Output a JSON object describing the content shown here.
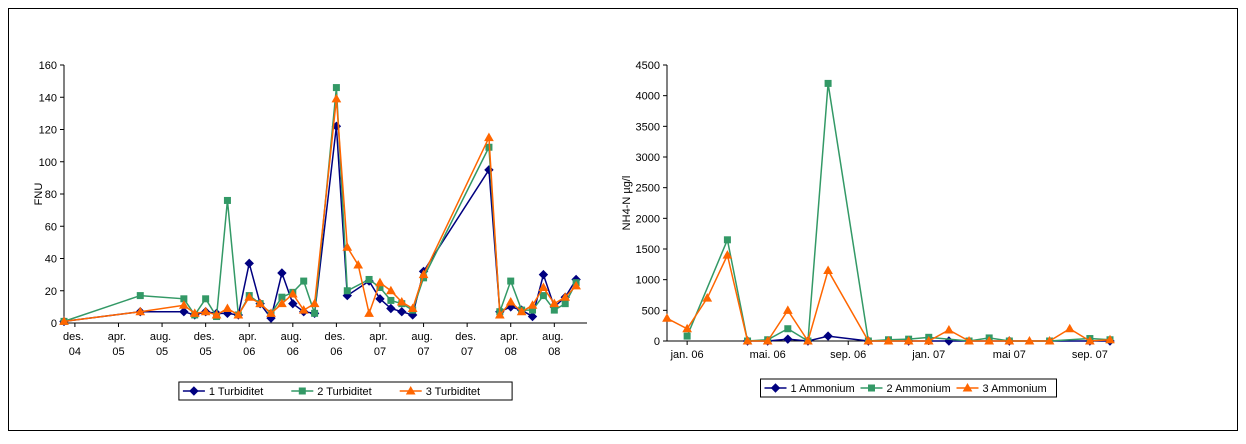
{
  "chart_data": [
    {
      "type": "line",
      "y_label": "FNU",
      "xlim": [
        "2004-11",
        "2008-11"
      ],
      "xticks": [
        {
          "value": "2004-12",
          "label": "des. 04"
        },
        {
          "value": "2005-04",
          "label": "apr. 05"
        },
        {
          "value": "2005-08",
          "label": "aug. 05"
        },
        {
          "value": "2005-12",
          "label": "des. 05"
        },
        {
          "value": "2006-04",
          "label": "apr. 06"
        },
        {
          "value": "2006-08",
          "label": "aug. 06"
        },
        {
          "value": "2006-12",
          "label": "des. 06"
        },
        {
          "value": "2007-04",
          "label": "apr. 07"
        },
        {
          "value": "2007-08",
          "label": "aug. 07"
        },
        {
          "value": "2007-12",
          "label": "des. 07"
        },
        {
          "value": "2008-04",
          "label": "apr. 08"
        },
        {
          "value": "2008-08",
          "label": "aug. 08"
        }
      ],
      "ylim": [
        0,
        160
      ],
      "yticks": [
        0,
        20,
        40,
        60,
        80,
        100,
        120,
        140,
        160
      ],
      "series": [
        {
          "name": "1 Turbiditet",
          "color": "#000080",
          "marker": "diamond",
          "x": [
            "2004-11",
            "2005-06",
            "2005-10",
            "2005-11",
            "2005-12",
            "2006-01",
            "2006-02",
            "2006-03",
            "2006-04",
            "2006-05",
            "2006-06",
            "2006-07",
            "2006-08",
            "2006-09",
            "2006-10",
            "2006-12",
            "2007-01",
            "2007-03",
            "2007-04",
            "2007-05",
            "2007-06",
            "2007-07",
            "2007-08",
            "2008-02",
            "2008-03",
            "2008-04",
            "2008-05",
            "2008-06",
            "2008-07",
            "2008-08",
            "2008-09",
            "2008-10"
          ],
          "values": [
            1,
            7,
            7,
            5,
            7,
            6,
            6,
            5,
            37,
            12,
            3,
            31,
            12,
            7,
            6,
            122,
            17,
            26,
            15,
            9,
            7,
            5,
            32,
            95,
            7,
            10,
            8,
            4,
            30,
            10,
            16,
            27
          ]
        },
        {
          "name": "2 Turbiditet",
          "color": "#339966",
          "marker": "square",
          "x": [
            "2004-11",
            "2005-06",
            "2005-10",
            "2005-11",
            "2005-12",
            "2006-01",
            "2006-02",
            "2006-03",
            "2006-04",
            "2006-05",
            "2006-06",
            "2006-07",
            "2006-08",
            "2006-09",
            "2006-10",
            "2006-12",
            "2007-01",
            "2007-03",
            "2007-04",
            "2007-05",
            "2007-06",
            "2007-07",
            "2007-08",
            "2008-02",
            "2008-03",
            "2008-04",
            "2008-05",
            "2008-06",
            "2008-07",
            "2008-08",
            "2008-09",
            "2008-10"
          ],
          "values": [
            1,
            17,
            15,
            5,
            15,
            4,
            76,
            5,
            17,
            12,
            6,
            16,
            19,
            26,
            6,
            146,
            20,
            27,
            22,
            14,
            12,
            8,
            28,
            109,
            7,
            26,
            8,
            8,
            17,
            8,
            12,
            25
          ]
        },
        {
          "name": "3 Turbiditet",
          "color": "#FF6600",
          "marker": "triangle",
          "x": [
            "2004-11",
            "2005-06",
            "2005-10",
            "2005-11",
            "2005-12",
            "2006-01",
            "2006-02",
            "2006-03",
            "2006-04",
            "2006-05",
            "2006-06",
            "2006-07",
            "2006-08",
            "2006-09",
            "2006-10",
            "2006-12",
            "2007-01",
            "2007-02",
            "2007-03",
            "2007-04",
            "2007-05",
            "2007-06",
            "2007-07",
            "2007-08",
            "2008-02",
            "2008-03",
            "2008-04",
            "2008-05",
            "2008-06",
            "2008-07",
            "2008-08",
            "2008-09",
            "2008-10"
          ],
          "values": [
            1,
            7,
            11,
            6,
            7,
            5,
            9,
            5,
            16,
            12,
            6,
            12,
            18,
            8,
            12,
            139,
            47,
            36,
            6,
            25,
            20,
            13,
            9,
            30,
            115,
            5,
            13,
            7,
            11,
            22,
            12,
            16,
            23
          ]
        }
      ]
    },
    {
      "type": "line",
      "y_label": "NH4-N µg/l",
      "xlim": [
        "2005-12",
        "2007-10"
      ],
      "xticks": [
        {
          "value": "2006-01",
          "label": "jan. 06"
        },
        {
          "value": "2006-05",
          "label": "mai. 06"
        },
        {
          "value": "2006-09",
          "label": "sep. 06"
        },
        {
          "value": "2007-01",
          "label": "jan. 07"
        },
        {
          "value": "2007-05",
          "label": "mai 07"
        },
        {
          "value": "2007-09",
          "label": "sep. 07"
        }
      ],
      "ylim": [
        0,
        4500
      ],
      "yticks": [
        0,
        500,
        1000,
        1500,
        2000,
        2500,
        3000,
        3500,
        4000,
        4500
      ],
      "series": [
        {
          "name": "1 Ammonium",
          "color": "#000080",
          "marker": "diamond",
          "x": [
            "2006-04",
            "2006-05",
            "2006-06",
            "2006-07",
            "2006-08",
            "2006-10",
            "2006-12",
            "2007-02",
            "2007-05",
            "2007-09",
            "2007-10"
          ],
          "values": [
            0,
            0,
            30,
            0,
            80,
            0,
            0,
            0,
            0,
            0,
            0
          ]
        },
        {
          "name": "2 Ammonium",
          "color": "#339966",
          "marker": "square",
          "x": [
            "2006-01",
            "2006-03",
            "2006-04",
            "2006-05",
            "2006-06",
            "2006-07",
            "2006-08",
            "2006-10",
            "2006-11",
            "2006-12",
            "2007-01",
            "2007-03",
            "2007-04",
            "2007-05",
            "2007-07",
            "2007-09",
            "2007-10"
          ],
          "values": [
            80,
            1650,
            0,
            20,
            200,
            0,
            4200,
            0,
            20,
            30,
            60,
            0,
            50,
            0,
            0,
            40,
            20
          ]
        },
        {
          "name": "3 Ammonium",
          "color": "#FF6600",
          "marker": "triangle",
          "x": [
            "2005-12",
            "2006-01",
            "2006-02",
            "2006-03",
            "2006-04",
            "2006-05",
            "2006-06",
            "2006-07",
            "2006-08",
            "2006-10",
            "2006-11",
            "2006-12",
            "2007-01",
            "2007-02",
            "2007-03",
            "2007-04",
            "2007-05",
            "2007-06",
            "2007-07",
            "2007-08",
            "2007-09",
            "2007-10"
          ],
          "values": [
            370,
            200,
            700,
            1400,
            0,
            0,
            500,
            0,
            1150,
            0,
            0,
            0,
            0,
            180,
            0,
            0,
            0,
            0,
            0,
            200,
            0,
            20
          ]
        }
      ]
    }
  ]
}
